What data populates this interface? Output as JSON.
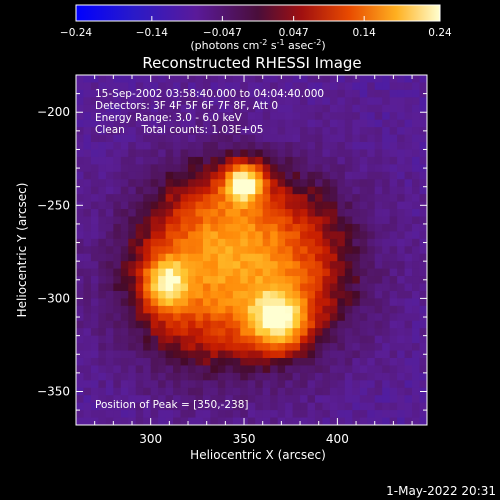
{
  "chart_data": {
    "type": "heatmap",
    "title": "Reconstructed RHESSI Image",
    "xlabel": "Heliocentric X (arcsec)",
    "ylabel": "Heliocentric Y (arcsec)",
    "xlim": [
      260,
      448
    ],
    "ylim": [
      -368,
      -180
    ],
    "x_ticks": [
      300,
      350,
      400
    ],
    "y_ticks": [
      -200,
      -250,
      -300,
      -350
    ],
    "colorbar": {
      "range": [
        -0.24,
        0.24
      ],
      "ticks": [
        "-0.24",
        "-0.14",
        "-0.047",
        "0.047",
        "0.14",
        "0.24"
      ],
      "unit_main": "(photons cm",
      "unit_sup1": "-2",
      "unit_mid": " s",
      "unit_sup2": "-1",
      "unit_mid2": " asec",
      "unit_sup3": "-2",
      "unit_end": ")"
    },
    "annotations": [
      "15-Sep-2002 03:58:40.000 to 04:04:40.000",
      "Detectors: 3F 4F 5F 6F 7F 8F, Att 0",
      "Energy Range: 3.0 - 6.0 keV",
      "Clean     Total counts: 1.03E+05"
    ],
    "peak_label": "Position of Peak = [350,-238]",
    "peak": [
      350,
      -238
    ],
    "sources": [
      {
        "x": 350,
        "y": -238,
        "peak": 0.24,
        "sx": 7,
        "sy": 7
      },
      {
        "x": 368,
        "y": -312,
        "peak": 0.2,
        "sx": 11,
        "sy": 11
      },
      {
        "x": 308,
        "y": -292,
        "peak": 0.18,
        "sx": 8,
        "sy": 10
      },
      {
        "x": 338,
        "y": -258,
        "peak": 0.1,
        "sx": 25,
        "sy": 22
      },
      {
        "x": 330,
        "y": -300,
        "peak": 0.12,
        "sx": 30,
        "sy": 28
      },
      {
        "x": 380,
        "y": -285,
        "peak": 0.09,
        "sx": 25,
        "sy": 30
      }
    ]
  },
  "footer_timestamp": "1-May-2022 20:31"
}
